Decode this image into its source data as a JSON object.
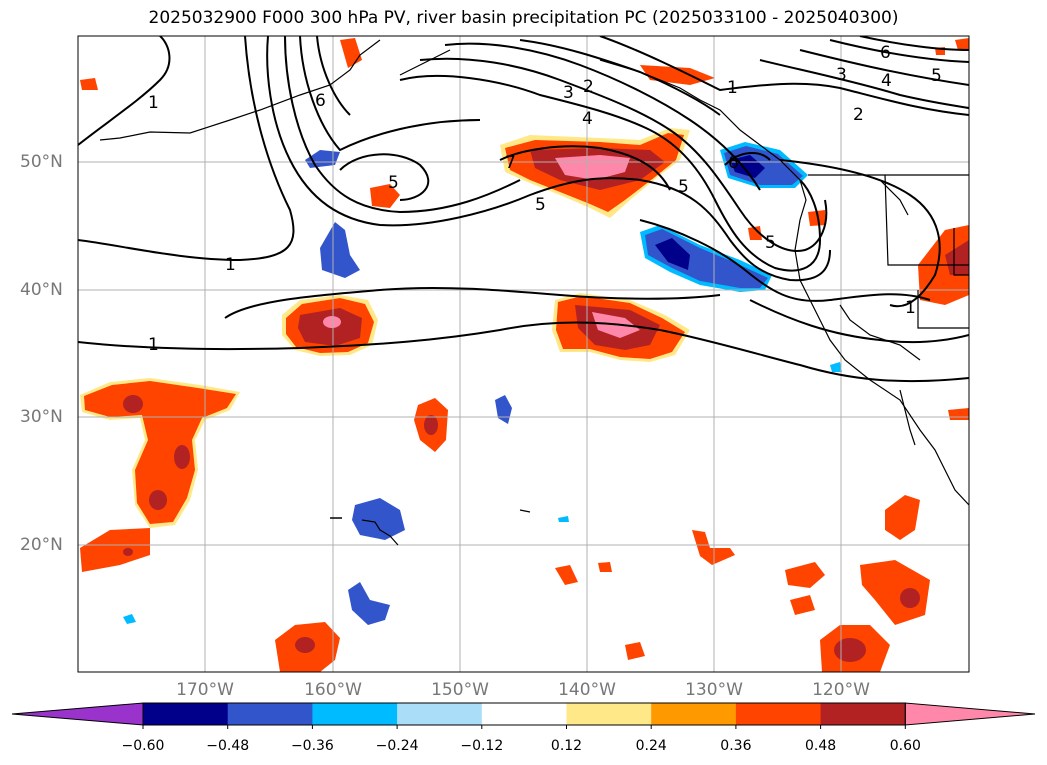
{
  "title": "2025032900 F000 300 hPa PV, river basin precipitation PC (2025033100 - 2025040300)",
  "lat_labels": [
    "50°N",
    "40°N",
    "30°N",
    "20°N"
  ],
  "lon_labels": [
    "170°W",
    "160°W",
    "150°W",
    "140°W",
    "130°W",
    "120°W"
  ],
  "colorbar": {
    "ticks": [
      "−0.60",
      "−0.48",
      "−0.36",
      "−0.24",
      "−0.12",
      "0.12",
      "0.24",
      "0.36",
      "0.48",
      "0.60"
    ],
    "colors": [
      "#9933cc",
      "#00008b",
      "#3355cc",
      "#00bbff",
      "#aaddf8",
      "#ffffff",
      "#ffe888",
      "#ff9900",
      "#ff4400",
      "#b22222",
      "#ff88aa"
    ]
  },
  "pv_contour_labels": [
    "1",
    "6",
    "1",
    "1",
    "5",
    "3",
    "2",
    "4",
    "7",
    "5",
    "1",
    "6",
    "5",
    "5",
    "3",
    "6",
    "4",
    "5",
    "2",
    "1"
  ],
  "colors": {
    "grid": "#b0b0b0",
    "contour": "#000000",
    "coast": "#000000"
  }
}
